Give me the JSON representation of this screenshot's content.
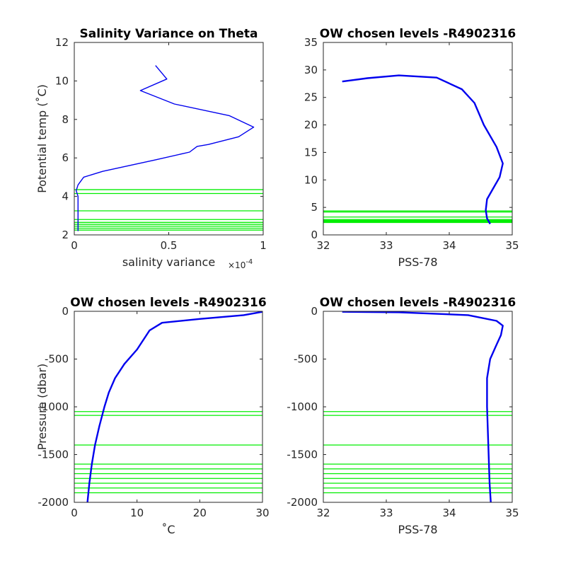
{
  "colors": {
    "profile": "#0000ee",
    "levels": "#00ee00",
    "axis": "#262626"
  },
  "chart_data": [
    {
      "type": "line",
      "title": "Salinity Variance on Theta",
      "xlabel": "salinity variance",
      "xexponent_base": "×10",
      "xexponent_power": "-4",
      "ylabel": "Potential temp (˚C)",
      "xlim": [
        0,
        1
      ],
      "ylim": [
        2,
        12
      ],
      "xticks": [
        "0",
        "0.5",
        "1"
      ],
      "yticks": [
        "2",
        "4",
        "6",
        "8",
        "10",
        "12"
      ],
      "series": [
        {
          "x": [
            0.43,
            0.49,
            0.35,
            0.53,
            0.82,
            0.95,
            0.87,
            0.71,
            0.65,
            0.61,
            0.43,
            0.15,
            0.05,
            0.02,
            0.01,
            0.02,
            0.02,
            0.02,
            0.02,
            0.02
          ],
          "y": [
            10.8,
            10.1,
            9.5,
            8.8,
            8.2,
            7.6,
            7.1,
            6.7,
            6.6,
            6.3,
            5.9,
            5.3,
            5.0,
            4.6,
            4.3,
            4.0,
            3.5,
            3.0,
            2.5,
            2.2
          ]
        }
      ],
      "chosen_levels": [
        4.35,
        4.15,
        3.25,
        2.8,
        2.65,
        2.55,
        2.45,
        2.35,
        2.25
      ]
    },
    {
      "type": "line",
      "title": "OW chosen levels -R4902316",
      "xlabel": "PSS-78",
      "ylabel": "",
      "xlim": [
        32,
        35
      ],
      "ylim": [
        0,
        35
      ],
      "xticks": [
        "32",
        "33",
        "34",
        "35"
      ],
      "yticks": [
        "0",
        "5",
        "10",
        "15",
        "20",
        "25",
        "30",
        "35"
      ],
      "series": [
        {
          "x": [
            32.3,
            32.7,
            33.2,
            33.8,
            34.2,
            34.4,
            34.55,
            34.75,
            34.85,
            34.8,
            34.7,
            34.6,
            34.58,
            34.6,
            34.65
          ],
          "y": [
            27.9,
            28.5,
            29.0,
            28.6,
            26.5,
            24.0,
            20.0,
            16.0,
            13.0,
            10.5,
            8.5,
            6.5,
            4.5,
            3.0,
            2.0
          ]
        }
      ],
      "chosen_levels": [
        4.35,
        4.15,
        3.25,
        2.8,
        2.65,
        2.55,
        2.45,
        2.35,
        2.25
      ]
    },
    {
      "type": "line",
      "title": "OW chosen levels -R4902316",
      "xlabel": "˚C",
      "ylabel": "Pressure (dbar)",
      "xlim": [
        0,
        30
      ],
      "ylim": [
        -2000,
        0
      ],
      "xticks": [
        "0",
        "10",
        "20",
        "30"
      ],
      "yticks": [
        "-2000",
        "-1500",
        "-1000",
        "-500",
        "0"
      ],
      "series": [
        {
          "x": [
            30,
            27,
            20,
            14,
            12,
            10,
            8,
            6.5,
            5.5,
            4.8,
            4.0,
            3.3,
            2.8,
            2.4,
            2.1
          ],
          "y": [
            -5,
            -40,
            -80,
            -120,
            -200,
            -400,
            -550,
            -700,
            -850,
            -1000,
            -1200,
            -1400,
            -1600,
            -1800,
            -2000
          ]
        }
      ],
      "chosen_levels": [
        -1050,
        -1090,
        -1400,
        -1600,
        -1650,
        -1700,
        -1750,
        -1800,
        -1850,
        -1900
      ]
    },
    {
      "type": "line",
      "title": "OW chosen levels -R4902316",
      "xlabel": "PSS-78",
      "ylabel": "",
      "xlim": [
        32,
        35
      ],
      "ylim": [
        -2000,
        0
      ],
      "xticks": [
        "32",
        "33",
        "34",
        "35"
      ],
      "yticks": [
        "-2000",
        "-1500",
        "-1000",
        "-500",
        "0"
      ],
      "series": [
        {
          "x": [
            32.3,
            33.2,
            34.3,
            34.75,
            34.85,
            34.82,
            34.75,
            34.65,
            34.6,
            34.6,
            34.62,
            34.64,
            34.66
          ],
          "y": [
            -5,
            -10,
            -40,
            -100,
            -150,
            -250,
            -350,
            -500,
            -700,
            -1000,
            -1400,
            -1800,
            -2000
          ]
        }
      ],
      "chosen_levels": [
        -1050,
        -1090,
        -1400,
        -1600,
        -1650,
        -1700,
        -1750,
        -1800,
        -1850,
        -1900
      ]
    }
  ]
}
